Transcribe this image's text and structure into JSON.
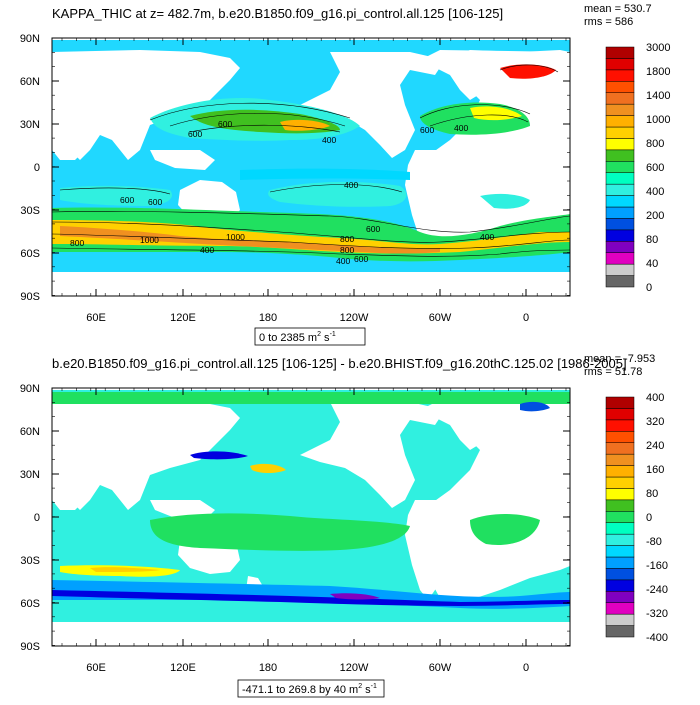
{
  "chart_data": [
    {
      "type": "heatmap",
      "title": "KAPPA_THIC at z= 482.7m, b.e20.B1850.f09_g16.pi_control.all.125 [106-125]",
      "stats": {
        "mean": "mean = 530.7",
        "rms": "rms = 586"
      },
      "range_label_text": "0 to 2385 m",
      "range_label_sup": "2",
      "range_label_tail": " s",
      "range_label_sup2": "-1",
      "x_ticks": [
        "60E",
        "120E",
        "180",
        "120W",
        "60W",
        "0"
      ],
      "y_ticks": [
        "90N",
        "60N",
        "30N",
        "0",
        "30S",
        "60S",
        "90S"
      ],
      "colorbar_levels": [
        "3000",
        "1800",
        "1400",
        "1000",
        "800",
        "600",
        "400",
        "200",
        "80",
        "40",
        "0"
      ],
      "contour_labels": [
        "600",
        "400",
        "600",
        "400",
        "600",
        "400",
        "600",
        "800",
        "1000",
        "400",
        "1000",
        "800",
        "600",
        "400",
        "600",
        "800",
        "400",
        "600"
      ],
      "mean": 530.7,
      "rms": 586,
      "range": [
        0,
        2385
      ]
    },
    {
      "type": "heatmap",
      "title": "b.e20.B1850.f09_g16.pi_control.all.125 [106-125] - b.e20.BHIST.f09_g16.20thC.125.02 [1986-2005]",
      "stats": {
        "mean": "mean = -7.953",
        "rms": "rms = 51.78"
      },
      "range_label_text": "-471.1 to 269.8 by 40 m",
      "range_label_sup": "2",
      "range_label_tail": " s",
      "range_label_sup2": "-1",
      "x_ticks": [
        "60E",
        "120E",
        "180",
        "120W",
        "60W",
        "0"
      ],
      "y_ticks": [
        "90N",
        "60N",
        "30N",
        "0",
        "30S",
        "60S",
        "90S"
      ],
      "colorbar_levels": [
        "400",
        "320",
        "240",
        "160",
        "80",
        "0",
        "-80",
        "-160",
        "-240",
        "-320",
        "-400"
      ],
      "mean": -7.953,
      "rms": 51.78,
      "range": [
        -471.1,
        269.8
      ],
      "interval": 40
    }
  ],
  "colors": {
    "top_scale": [
      "#666666",
      "#cccccc",
      "#e000c0",
      "#8000c0",
      "#0000e0",
      "#0050e0",
      "#00a0ff",
      "#00d8ff",
      "#30f0e0",
      "#00ffc0",
      "#20e060",
      "#40c020",
      "#ffff00",
      "#ffd000",
      "#ffb000",
      "#f09020",
      "#f07020",
      "#ff5000",
      "#ff1000",
      "#e00000",
      "#b00000"
    ],
    "bottom_scale": [
      "#666666",
      "#cccccc",
      "#e000c0",
      "#8000c0",
      "#0000e0",
      "#0050e0",
      "#00a0ff",
      "#00d8ff",
      "#30f0e0",
      "#00ffc0",
      "#20e060",
      "#40c020",
      "#ffff00",
      "#ffd000",
      "#ffb000",
      "#f09020",
      "#f07020",
      "#ff5000",
      "#ff1000",
      "#e00000",
      "#b00000"
    ],
    "land": "#ffffff",
    "ocean_base_top": "#20d8ff",
    "ocean_base_bottom": "#30f0e0"
  }
}
